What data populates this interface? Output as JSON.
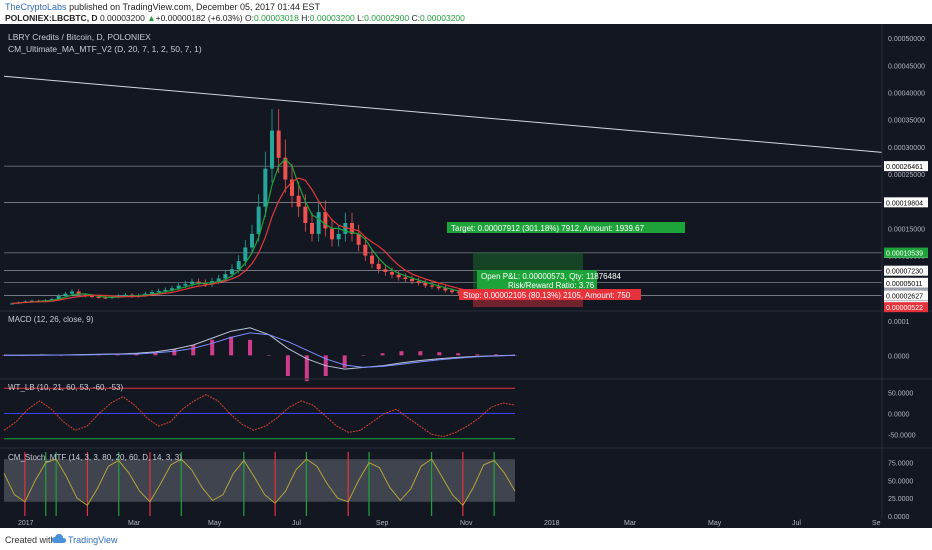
{
  "header": {
    "publisher": "TheCryptoLabs",
    "published_text": "published on TradingView.com, December 05, 2017 01:44 EST",
    "symbol": "POLONIEX:LBCBTC, D",
    "price": "0.00003200",
    "change": "+0.00000182 (+6.03%)",
    "o_label": "O:",
    "o_value": "0.00003018",
    "h_label": "H:",
    "h_value": "0.00003200",
    "l_label": "L:",
    "l_value": "0.00002900",
    "c_label": "C:",
    "c_value": "0.00003200"
  },
  "footer": {
    "created": "Created with",
    "brand": "TradingView"
  },
  "colors": {
    "background": "#131722",
    "up": "#26a69a",
    "down": "#ef5350",
    "ma_fast": "#1ea33a",
    "ma_slow": "#e03a3a",
    "target_box": "#1b7a2a",
    "stop_box": "#e5323b",
    "macd_line": "#b8c4d6",
    "signal_line": "#7d8cff",
    "hist": "#d03c8c",
    "wt_line": "#d0442a",
    "wt_dots": "#4040ff",
    "stoch": "#b2a23a"
  },
  "chart_data": [
    {
      "type": "candlestick",
      "title": "LBRY Credits / Bitcoin, D, POLONIEX",
      "indicator": "CM_Ultimate_MA_MTF_V2 (D, 20, 7, 1, 2, 50, 7, 1)",
      "x_ticks": [
        "2017",
        "Mar",
        "May",
        "Jul",
        "Sep",
        "Nov",
        "2018",
        "Mar",
        "May",
        "Jul",
        "Se"
      ],
      "y_ticks": [
        "0.00050000",
        "0.00045000",
        "0.00040000",
        "0.00035000",
        "0.00030000",
        "0.00025000",
        "0.00020000",
        "0.00015000",
        "0.00010000",
        "0.00005000"
      ],
      "ylim": [
        0,
        0.000515
      ],
      "price_tags": [
        {
          "value": "0.00026461",
          "y": 0.00026461,
          "style": "white"
        },
        {
          "value": "0.00019804",
          "y": 0.00019804,
          "style": "white"
        },
        {
          "value": "0.00010506",
          "y": 0.00010506,
          "style": "white"
        },
        {
          "value": "0.00010539",
          "y": 0.00010539,
          "style": "green"
        },
        {
          "value": "0.00007230",
          "y": 7.23e-05,
          "style": "white"
        },
        {
          "value": "0.00005011",
          "y": 5.011e-05,
          "style": "white"
        },
        {
          "value": "0.00003200",
          "y": 3.2e-05,
          "style": "grey"
        },
        {
          "value": "0.00002627",
          "y": 2.627e-05,
          "style": "white"
        },
        {
          "value": "0.00000722",
          "y": 7.22e-06,
          "style": "white"
        },
        {
          "value": "0.00000522",
          "y": 5.22e-06,
          "style": "red"
        }
      ],
      "horizontal_levels": [
        0.00026461,
        0.00019804,
        0.00010506,
        7.23e-05,
        5.011e-05,
        2.627e-05
      ],
      "trendline": [
        [
          0,
          0.00043
        ],
        [
          1,
          0.00029
        ]
      ],
      "candles_close": [
        1.2e-05,
        1.4e-05,
        1.6e-05,
        1.7e-05,
        1.6e-05,
        1.8e-05,
        2e-05,
        2.6e-05,
        3e-05,
        3.4e-05,
        2.8e-05,
        2.6e-05,
        2.4e-05,
        2.3e-05,
        2.2e-05,
        2.4e-05,
        2.6e-05,
        2.8e-05,
        2.5e-05,
        2.7e-05,
        3e-05,
        3.3e-05,
        3.5e-05,
        3.7e-05,
        4e-05,
        4.5e-05,
        4.8e-05,
        5.2e-05,
        5e-05,
        4.7e-05,
        5.3e-05,
        5.8e-05,
        6.6e-05,
        7.5e-05,
        9e-05,
        0.000115,
        0.00014,
        0.00019,
        0.00026,
        0.00033,
        0.00028,
        0.00024,
        0.00021,
        0.00019,
        0.00016,
        0.00014,
        0.00018,
        0.00015,
        0.00013,
        0.00014,
        0.00016,
        0.00014,
        0.00012,
        0.0001,
        8.5e-05,
        7.5e-05,
        7e-05,
        6.5e-05,
        6e-05,
        5.7e-05,
        5.3e-05,
        5e-05,
        4.5e-05,
        4.3e-05,
        4e-05,
        3.6e-05,
        3.3e-05,
        3.1e-05,
        3e-05,
        3.2e-05
      ],
      "trade": {
        "target_label": "Target: 0.00007912 (301.18%) 7912, Amount: 1939.67",
        "pnl_label": "Open P&L: 0.00000573, Qty: 11876484",
        "rr_label": "Risk/Reward Ratio: 3.76",
        "stop_label": "Stop: 0.00002105 (80.13%) 2105, Amount: 750",
        "entry": 2.627e-05,
        "target": 0.00010539,
        "stop": 5.22e-06
      }
    },
    {
      "type": "line",
      "title": "MACD (12, 26, close, 9)",
      "y_ticks": [
        "0.0001",
        "0.0000"
      ],
      "series": [
        {
          "name": "MACD",
          "values": [
            0,
            0,
            1e-06,
            1e-06,
            2e-06,
            3e-06,
            4e-06,
            6e-06,
            1e-05,
            1.8e-05,
            3e-05,
            5e-05,
            7e-05,
            8e-05,
            6e-05,
            2e-05,
            -1e-05,
            -3e-05,
            -4e-05,
            -3.5e-05,
            -3e-05,
            -2.2e-05,
            -1.5e-05,
            -1e-05,
            -6e-06,
            -3e-06,
            -1e-06,
            0
          ]
        },
        {
          "name": "Signal",
          "values": [
            0,
            0,
            0,
            1e-06,
            1e-06,
            2e-06,
            3e-06,
            4e-06,
            7e-06,
            1.2e-05,
            2e-05,
            3.5e-05,
            5.2e-05,
            6.5e-05,
            6e-05,
            4e-05,
            1.5e-05,
            -1e-05,
            -2.8e-05,
            -3.5e-05,
            -3.2e-05,
            -2.6e-05,
            -1.9e-05,
            -1.3e-05,
            -8e-06,
            -4e-06,
            -2e-06,
            0
          ]
        }
      ]
    },
    {
      "type": "line",
      "title": "WT_LB (10, 21, 60, 53, -60, -53)",
      "y_ticks": [
        "50.0000",
        "0.0000",
        "-50.0000"
      ],
      "levels": [
        60,
        0,
        -60
      ],
      "series": [
        {
          "name": "WT",
          "values": [
            -40,
            -20,
            10,
            30,
            10,
            -20,
            -40,
            -30,
            0,
            25,
            40,
            20,
            -10,
            -30,
            -20,
            10,
            30,
            45,
            30,
            0,
            -25,
            -40,
            -30,
            -10,
            15,
            30,
            20,
            -5,
            -30,
            -45,
            -40,
            -20,
            0,
            10,
            -10,
            -30,
            -50,
            -55,
            -45,
            -30,
            -10,
            15,
            25,
            20
          ]
        }
      ]
    },
    {
      "type": "line",
      "title": "CM_Stoch_MTF (14, 3, 3, 80, 20, 60, D, 14, 3, 3)",
      "y_ticks": [
        "75.0000",
        "50.0000",
        "25.0000",
        "0.0000"
      ],
      "levels": [
        80,
        20
      ],
      "series": [
        {
          "name": "%K",
          "values": [
            60,
            30,
            20,
            50,
            75,
            80,
            55,
            25,
            15,
            40,
            70,
            78,
            60,
            35,
            20,
            45,
            72,
            80,
            65,
            40,
            22,
            30,
            60,
            78,
            55,
            30,
            18,
            35,
            65,
            80,
            70,
            45,
            25,
            20,
            50,
            75,
            68,
            40,
            22,
            38,
            70,
            80,
            55,
            30,
            15,
            40,
            72,
            78,
            60,
            35
          ]
        }
      ]
    }
  ]
}
